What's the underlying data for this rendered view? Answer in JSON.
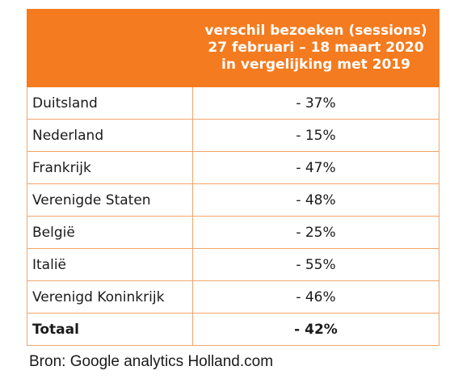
{
  "chart_data": {
    "type": "table",
    "columns": [
      "",
      "verschil bezoeken (sessions) 27 februari – 18 maart 2020 in vergelijking met 2019"
    ],
    "rows": [
      {
        "country": "Duitsland",
        "value": "- 37%"
      },
      {
        "country": "Nederland",
        "value": "- 15%"
      },
      {
        "country": "Frankrijk",
        "value": "- 47%"
      },
      {
        "country": "Verenigde Staten",
        "value": "- 48%"
      },
      {
        "country": "België",
        "value": "- 25%"
      },
      {
        "country": "Italië",
        "value": "- 55%"
      },
      {
        "country": "Verenigd Koninkrijk",
        "value": "- 46%"
      }
    ],
    "total": {
      "country": "Totaal",
      "value": "- 42%"
    },
    "source": "Bron: Google analytics Holland.com"
  },
  "colors": {
    "header_bg": "#f47b1f",
    "header_text": "#ffffff",
    "border": "#f2a66c"
  }
}
